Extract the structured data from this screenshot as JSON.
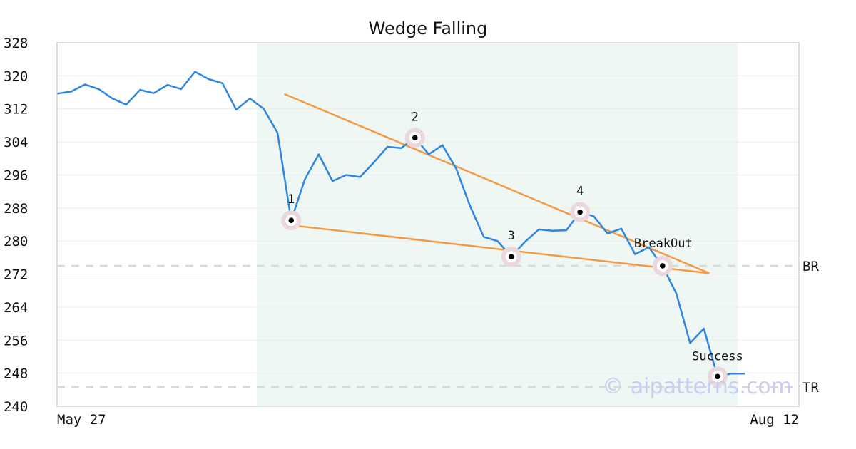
{
  "chart_data": {
    "type": "line",
    "title": "Wedge Falling",
    "xlabel": "",
    "ylabel": "",
    "ylim": [
      240,
      328
    ],
    "yticks": [
      240,
      248,
      256,
      264,
      272,
      280,
      288,
      296,
      304,
      312,
      320,
      328
    ],
    "x_tick_labels": [
      {
        "index": 0,
        "label": "May 27"
      },
      {
        "index": 51,
        "label": "Aug 12"
      }
    ],
    "grid": "horizontal",
    "pattern_region": {
      "start_index": 14.5,
      "end_index": 49.5
    },
    "series": [
      {
        "values": [
          315.7,
          316.2,
          317.9,
          316.8,
          314.5,
          313,
          316.6,
          315.8,
          317.8,
          316.8,
          321,
          319.2,
          318.2,
          311.8,
          314.5,
          312,
          306.2,
          285,
          295,
          301,
          294.5,
          296,
          295.5,
          299,
          302.8,
          302.5,
          305,
          301,
          303.2,
          297.5,
          288.5,
          281,
          280,
          276.2,
          279.8,
          282.8,
          282.5,
          282.6,
          287,
          286,
          281.8,
          283,
          276.8,
          278.5,
          274,
          267.3,
          255.3,
          258.8,
          247.2,
          247.9,
          247.9
        ]
      }
    ],
    "trendlines": [
      {
        "x": [
          16.5,
          47.4
        ],
        "y": [
          315.6,
          272.2
        ]
      },
      {
        "x": [
          16.5,
          47.4
        ],
        "y": [
          284.0,
          272.2
        ]
      }
    ],
    "reference_lines": [
      {
        "label": "BR",
        "value": 274.0
      },
      {
        "label": "TR",
        "value": 244.7
      }
    ],
    "markers": [
      {
        "label": "1",
        "index": 17,
        "value": 285.0
      },
      {
        "label": "2",
        "index": 26,
        "value": 305.0
      },
      {
        "label": "3",
        "index": 33,
        "value": 276.2
      },
      {
        "label": "4",
        "index": 38,
        "value": 287.0
      },
      {
        "label": "BreakOut",
        "index": 44,
        "value": 274.0
      },
      {
        "label": "Success",
        "index": 48,
        "value": 247.2
      }
    ],
    "watermark": "© aipatterns.com",
    "colors": {
      "line": "#2e86e0",
      "trendline": "#f59a42",
      "region": "#eef7f3",
      "marker_halo": "#ecd7dc",
      "reference": "#d9d9d9",
      "watermark": "#c9cdf2"
    }
  }
}
